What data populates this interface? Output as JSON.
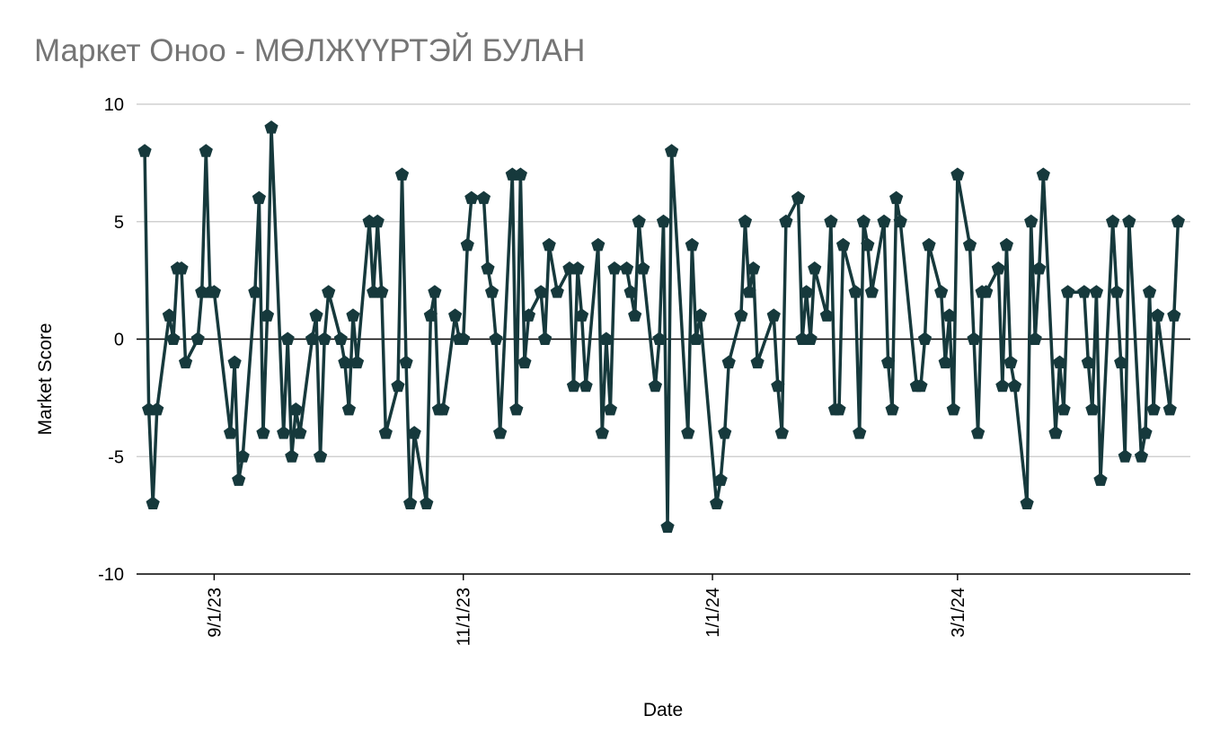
{
  "chart_data": {
    "type": "line",
    "title": "Маркет Оноо - МӨЛЖҮҮРТЭЙ БУЛАН",
    "x_label": "Date",
    "y_label": "Market Score",
    "color": "#16393c",
    "marker": "pentagon",
    "grid": true,
    "xlim": [
      "2023-08-13",
      "2024-04-27"
    ],
    "xticks": [
      {
        "value": "2023-09-01",
        "label": "9/1/23"
      },
      {
        "value": "2023-11-01",
        "label": "11/1/23"
      },
      {
        "value": "2024-01-01",
        "label": "1/1/24"
      },
      {
        "value": "2024-03-01",
        "label": "3/1/24"
      }
    ],
    "ylim": [
      -10,
      10
    ],
    "yticks": [
      -10,
      -5,
      0,
      5,
      10
    ],
    "x": [
      "2023-08-15",
      "2023-08-16",
      "2023-08-17",
      "2023-08-18",
      "2023-08-21",
      "2023-08-22",
      "2023-08-23",
      "2023-08-24",
      "2023-08-25",
      "2023-08-28",
      "2023-08-29",
      "2023-08-30",
      "2023-08-31",
      "2023-09-01",
      "2023-09-05",
      "2023-09-06",
      "2023-09-07",
      "2023-09-08",
      "2023-09-11",
      "2023-09-12",
      "2023-09-13",
      "2023-09-14",
      "2023-09-15",
      "2023-09-18",
      "2023-09-19",
      "2023-09-20",
      "2023-09-21",
      "2023-09-22",
      "2023-09-25",
      "2023-09-26",
      "2023-09-27",
      "2023-09-28",
      "2023-09-29",
      "2023-10-02",
      "2023-10-03",
      "2023-10-04",
      "2023-10-05",
      "2023-10-06",
      "2023-10-09",
      "2023-10-10",
      "2023-10-11",
      "2023-10-12",
      "2023-10-13",
      "2023-10-16",
      "2023-10-17",
      "2023-10-18",
      "2023-10-19",
      "2023-10-20",
      "2023-10-23",
      "2023-10-24",
      "2023-10-25",
      "2023-10-26",
      "2023-10-27",
      "2023-10-30",
      "2023-10-31",
      "2023-11-01",
      "2023-11-02",
      "2023-11-03",
      "2023-11-06",
      "2023-11-07",
      "2023-11-08",
      "2023-11-09",
      "2023-11-10",
      "2023-11-13",
      "2023-11-14",
      "2023-11-15",
      "2023-11-16",
      "2023-11-17",
      "2023-11-20",
      "2023-11-21",
      "2023-11-22",
      "2023-11-24",
      "2023-11-27",
      "2023-11-28",
      "2023-11-29",
      "2023-11-30",
      "2023-12-01",
      "2023-12-04",
      "2023-12-05",
      "2023-12-06",
      "2023-12-07",
      "2023-12-08",
      "2023-12-11",
      "2023-12-12",
      "2023-12-13",
      "2023-12-14",
      "2023-12-15",
      "2023-12-18",
      "2023-12-19",
      "2023-12-20",
      "2023-12-21",
      "2023-12-22",
      "2023-12-26",
      "2023-12-27",
      "2023-12-28",
      "2023-12-29",
      "2024-01-02",
      "2024-01-03",
      "2024-01-04",
      "2024-01-05",
      "2024-01-08",
      "2024-01-09",
      "2024-01-10",
      "2024-01-11",
      "2024-01-12",
      "2024-01-16",
      "2024-01-17",
      "2024-01-18",
      "2024-01-19",
      "2024-01-22",
      "2024-01-23",
      "2024-01-24",
      "2024-01-25",
      "2024-01-26",
      "2024-01-29",
      "2024-01-30",
      "2024-01-31",
      "2024-02-01",
      "2024-02-02",
      "2024-02-05",
      "2024-02-06",
      "2024-02-07",
      "2024-02-08",
      "2024-02-09",
      "2024-02-12",
      "2024-02-13",
      "2024-02-14",
      "2024-02-15",
      "2024-02-16",
      "2024-02-20",
      "2024-02-21",
      "2024-02-22",
      "2024-02-23",
      "2024-02-26",
      "2024-02-27",
      "2024-02-28",
      "2024-02-29",
      "2024-03-01",
      "2024-03-04",
      "2024-03-05",
      "2024-03-06",
      "2024-03-07",
      "2024-03-08",
      "2024-03-11",
      "2024-03-12",
      "2024-03-13",
      "2024-03-14",
      "2024-03-15",
      "2024-03-18",
      "2024-03-19",
      "2024-03-20",
      "2024-03-21",
      "2024-03-22",
      "2024-03-25",
      "2024-03-26",
      "2024-03-27",
      "2024-03-28",
      "2024-04-01",
      "2024-04-02",
      "2024-04-03",
      "2024-04-04",
      "2024-04-05",
      "2024-04-08",
      "2024-04-09",
      "2024-04-10",
      "2024-04-11",
      "2024-04-12",
      "2024-04-15",
      "2024-04-16",
      "2024-04-17",
      "2024-04-18",
      "2024-04-19",
      "2024-04-22",
      "2024-04-23",
      "2024-04-24"
    ],
    "values": [
      8,
      -3,
      -7,
      -3,
      1,
      0,
      3,
      3,
      -1,
      0,
      2,
      8,
      2,
      2,
      -4,
      -1,
      -6,
      -5,
      2,
      6,
      -4,
      1,
      9,
      -4,
      0,
      -5,
      -3,
      -4,
      0,
      1,
      -5,
      0,
      2,
      0,
      -1,
      -3,
      1,
      -1,
      5,
      2,
      5,
      2,
      -4,
      -2,
      7,
      -1,
      -7,
      -4,
      -7,
      1,
      2,
      -3,
      -3,
      1,
      0,
      0,
      4,
      6,
      6,
      3,
      2,
      0,
      -4,
      7,
      -3,
      7,
      -1,
      1,
      2,
      0,
      4,
      2,
      3,
      -2,
      3,
      1,
      -2,
      4,
      -4,
      0,
      -3,
      3,
      3,
      2,
      1,
      5,
      3,
      -2,
      0,
      5,
      -8,
      8,
      -4,
      4,
      0,
      1,
      -7,
      -6,
      -4,
      -1,
      1,
      5,
      2,
      3,
      -1,
      1,
      -2,
      -4,
      5,
      6,
      0,
      2,
      0,
      3,
      1,
      5,
      -3,
      -3,
      4,
      2,
      -4,
      5,
      4,
      2,
      5,
      -1,
      -3,
      6,
      5,
      -2,
      -2,
      0,
      4,
      2,
      -1,
      1,
      -3,
      7,
      4,
      0,
      -4,
      2,
      2,
      3,
      -2,
      4,
      -1,
      -2,
      -7,
      5,
      0,
      3,
      7,
      -4,
      -1,
      -3,
      2,
      2,
      -1,
      -3,
      2,
      -6,
      5,
      2,
      -1,
      -5,
      5,
      -5,
      -4,
      2,
      -3,
      1,
      -3,
      1,
      5
    ]
  }
}
